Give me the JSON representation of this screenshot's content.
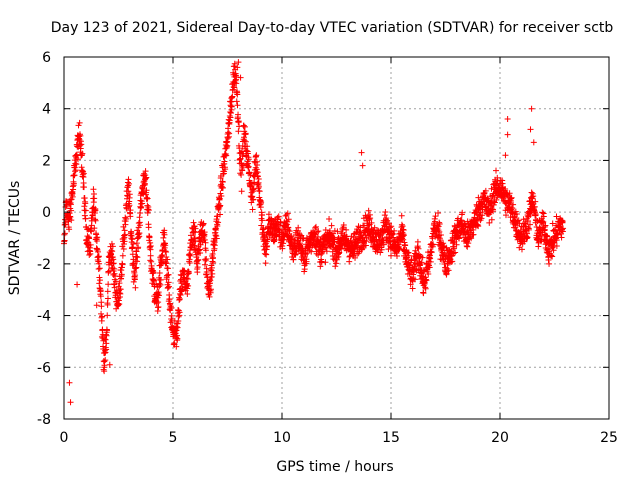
{
  "chart_data": {
    "type": "scatter",
    "title": "Day 123 of 2021, Sidereal Day-to-day VTEC variation (SDTVAR) for receiver sctb",
    "xlabel": "GPS time / hours",
    "ylabel": "SDTVAR / TECUs",
    "xlim": [
      0,
      25
    ],
    "ylim": [
      -8,
      6
    ],
    "x_ticks": [
      0,
      5,
      10,
      15,
      20,
      25
    ],
    "y_ticks": [
      -8,
      -6,
      -4,
      -2,
      0,
      2,
      4,
      6
    ],
    "grid": true,
    "marker": "+",
    "color": "#ff0000",
    "series": [
      {
        "name": "SDTVAR",
        "profile_x": [
          0.0,
          0.1,
          0.2,
          0.3,
          0.45,
          0.6,
          0.75,
          0.9,
          1.05,
          1.2,
          1.35,
          1.5,
          1.65,
          1.75,
          1.85,
          1.95,
          2.05,
          2.2,
          2.35,
          2.5,
          2.65,
          2.8,
          2.95,
          3.1,
          3.25,
          3.4,
          3.55,
          3.7,
          3.85,
          4.0,
          4.15,
          4.3,
          4.45,
          4.6,
          4.75,
          4.9,
          5.05,
          5.2,
          5.35,
          5.5,
          5.65,
          5.8,
          5.95,
          6.1,
          6.25,
          6.4,
          6.55,
          6.7,
          6.85,
          7.0,
          7.15,
          7.3,
          7.45,
          7.6,
          7.75,
          7.85,
          7.95,
          8.05,
          8.15,
          8.25,
          8.35,
          8.5,
          8.65,
          8.8,
          8.95,
          9.1,
          9.25,
          9.4,
          9.6,
          9.8,
          10.0,
          10.25,
          10.5,
          10.75,
          11.0,
          11.25,
          11.5,
          11.75,
          12.0,
          12.25,
          12.5,
          12.75,
          13.0,
          13.25,
          13.5,
          13.75,
          14.0,
          14.25,
          14.5,
          14.75,
          15.0,
          15.25,
          15.5,
          15.75,
          16.0,
          16.25,
          16.5,
          16.75,
          17.0,
          17.25,
          17.5,
          17.75,
          18.0,
          18.25,
          18.5,
          18.75,
          19.0,
          19.25,
          19.5,
          19.75,
          20.0,
          20.25,
          20.5,
          20.75,
          21.0,
          21.25,
          21.5,
          21.75,
          22.0,
          22.25,
          22.5,
          22.75,
          22.9
        ],
        "profile_y": [
          -1.5,
          0.5,
          -0.5,
          0.2,
          1.2,
          2.5,
          3.0,
          1.0,
          -1.0,
          -1.5,
          0.5,
          -1.0,
          -2.5,
          -4.5,
          -5.8,
          -5.0,
          -2.0,
          -1.5,
          -3.0,
          -3.5,
          -2.0,
          -0.5,
          1.0,
          -1.0,
          -2.5,
          -1.0,
          0.5,
          1.5,
          0.0,
          -2.0,
          -3.0,
          -3.5,
          -2.0,
          -1.0,
          -2.5,
          -4.0,
          -5.0,
          -4.5,
          -3.0,
          -2.5,
          -3.0,
          -1.5,
          -0.5,
          -2.0,
          -1.0,
          -0.5,
          -2.5,
          -3.0,
          -1.5,
          -0.5,
          0.5,
          1.5,
          2.5,
          3.5,
          5.0,
          5.5,
          4.5,
          2.5,
          1.5,
          3.0,
          2.5,
          1.5,
          0.5,
          2.0,
          1.0,
          -0.5,
          -1.5,
          -0.5,
          -0.8,
          -0.5,
          -1.0,
          -0.5,
          -1.5,
          -1.0,
          -1.8,
          -1.2,
          -0.8,
          -1.5,
          -1.2,
          -1.0,
          -1.5,
          -1.0,
          -1.2,
          -1.5,
          -1.0,
          -0.8,
          -0.5,
          -1.0,
          -1.2,
          -0.5,
          -1.0,
          -1.5,
          -0.8,
          -2.0,
          -2.5,
          -1.5,
          -2.8,
          -2.0,
          -0.5,
          -1.0,
          -2.0,
          -1.5,
          -0.8,
          -0.5,
          -1.0,
          -0.5,
          0.0,
          0.5,
          0.0,
          0.8,
          1.0,
          0.5,
          0.2,
          -0.5,
          -1.0,
          -0.5,
          0.5,
          -1.0,
          -0.5,
          -1.5,
          -1.0,
          -0.5,
          -0.5
        ],
        "spread": 0.55,
        "outliers": [
          {
            "x": 0.25,
            "y": -6.6
          },
          {
            "x": 0.3,
            "y": -7.35
          },
          {
            "x": 0.6,
            "y": -2.8
          },
          {
            "x": 1.5,
            "y": -3.6
          },
          {
            "x": 1.85,
            "y": -6.0
          },
          {
            "x": 5.15,
            "y": -5.2
          },
          {
            "x": 13.65,
            "y": 2.3
          },
          {
            "x": 13.7,
            "y": 1.8
          },
          {
            "x": 20.35,
            "y": 3.6
          },
          {
            "x": 20.35,
            "y": 3.0
          },
          {
            "x": 20.25,
            "y": 2.2
          },
          {
            "x": 21.45,
            "y": 4.0
          },
          {
            "x": 21.4,
            "y": 3.2
          },
          {
            "x": 21.55,
            "y": 2.7
          },
          {
            "x": 8.0,
            "y": 5.8
          },
          {
            "x": 8.1,
            "y": 5.2
          },
          {
            "x": 7.95,
            "y": 5.6
          },
          {
            "x": 2.1,
            "y": -5.9
          }
        ]
      }
    ]
  }
}
